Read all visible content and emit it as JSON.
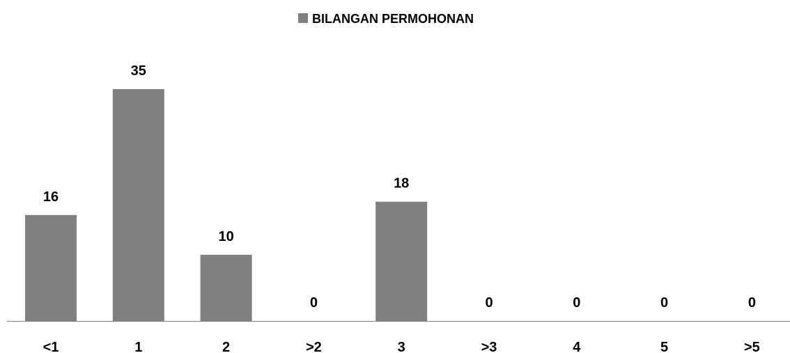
{
  "chart_data": {
    "type": "bar",
    "categories": [
      "<1",
      "1",
      "2",
      ">2",
      "3",
      ">3",
      "4",
      "5",
      ">5"
    ],
    "series": [
      {
        "name": "BILANGAN PERMOHONAN",
        "values": [
          16,
          35,
          10,
          0,
          18,
          0,
          0,
          0,
          0
        ],
        "color": "#808080"
      }
    ],
    "data_labels": [
      "16",
      "35",
      "10",
      "0",
      "18",
      "0",
      "0",
      "0",
      "0"
    ],
    "legend": {
      "position": "top-center",
      "swatch_color": "#808080"
    },
    "title": "",
    "xlabel": "",
    "ylabel": "",
    "ylim": [
      0,
      35
    ],
    "grid": false,
    "axis_color": "#808080"
  }
}
